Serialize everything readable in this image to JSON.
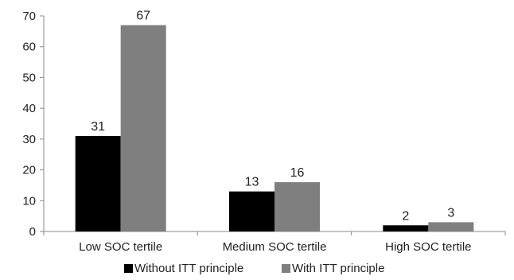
{
  "chart_data": {
    "type": "bar",
    "categories": [
      "Low SOC tertile",
      "Medium SOC tertile",
      "High SOC tertile"
    ],
    "series": [
      {
        "name": "Without ITT principle",
        "values": [
          31,
          13,
          2
        ],
        "color": "#000000"
      },
      {
        "name": "With ITT principle",
        "values": [
          67,
          16,
          3
        ],
        "color": "#7f7f7f"
      }
    ],
    "title": "",
    "xlabel": "",
    "ylabel": "",
    "ylim": [
      0,
      70
    ],
    "yticks": [
      0,
      10,
      20,
      30,
      40,
      50,
      60,
      70
    ],
    "grid": false,
    "legend_position": "bottom"
  }
}
